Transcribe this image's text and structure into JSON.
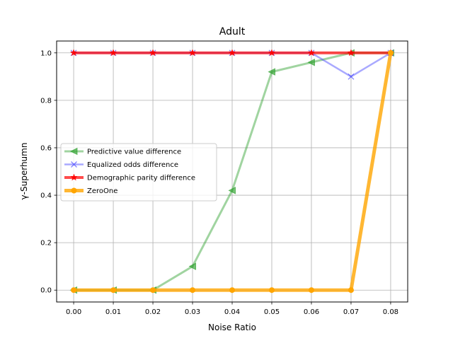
{
  "chart_data": {
    "type": "line",
    "title": "Adult",
    "xlabel": "Noise Ratio",
    "ylabel": "γ-Superhumn",
    "x": [
      0.0,
      0.01,
      0.02,
      0.03,
      0.04,
      0.05,
      0.06,
      0.07,
      0.08
    ],
    "xticks": [
      "0.00",
      "0.01",
      "0.02",
      "0.03",
      "0.04",
      "0.05",
      "0.06",
      "0.07",
      "0.08"
    ],
    "yticks": [
      "0.0",
      "0.2",
      "0.4",
      "0.6",
      "0.8",
      "1.0"
    ],
    "xlim": [
      -0.0043,
      0.0843
    ],
    "ylim": [
      -0.05,
      1.05
    ],
    "grid": true,
    "legend_position": "center-left",
    "series": [
      {
        "name": "Predictive value difference",
        "color": "#2ca02c",
        "marker": "triangle-left",
        "values": [
          0,
          0,
          0,
          0.1,
          0.42,
          0.92,
          0.96,
          1.0,
          1.0
        ]
      },
      {
        "name": "Equalized odds difference",
        "color": "#4040ff",
        "marker": "x",
        "values": [
          1.0,
          1.0,
          1.0,
          1.0,
          1.0,
          1.0,
          1.0,
          0.9,
          1.0
        ]
      },
      {
        "name": "Demographic parity difference",
        "color": "#ff0000",
        "marker": "star",
        "values": [
          1.0,
          1.0,
          1.0,
          1.0,
          1.0,
          1.0,
          1.0,
          1.0,
          1.0
        ]
      },
      {
        "name": "ZeroOne",
        "color": "#ffa500",
        "marker": "circle",
        "values": [
          0,
          0,
          0,
          0,
          0,
          0,
          0,
          0,
          1.0
        ]
      }
    ]
  }
}
